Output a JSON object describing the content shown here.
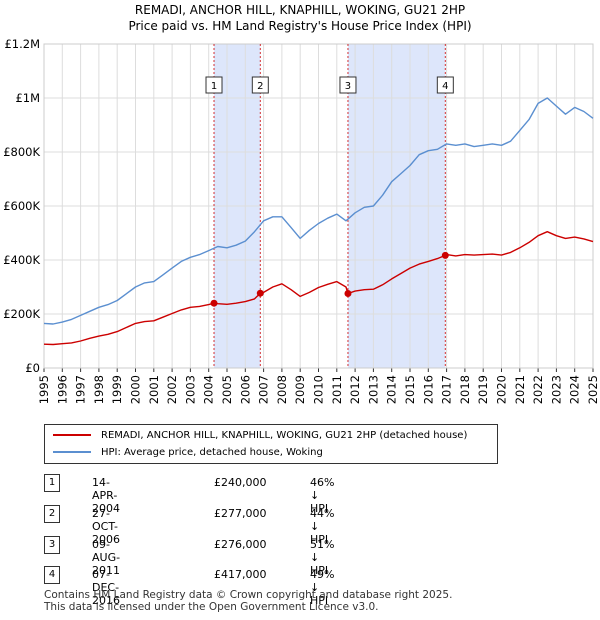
{
  "title_line1": "REMADI, ANCHOR HILL, KNAPHILL, WOKING, GU21 2HP",
  "title_line2": "Price paid vs. HM Land Registry's House Price Index (HPI)",
  "legend": {
    "red_label": "REMADI, ANCHOR HILL, KNAPHILL, WOKING, GU21 2HP (detached house)",
    "blue_label": "HPI: Average price, detached house, Woking"
  },
  "sales": [
    {
      "num": "1",
      "date": "14-APR-2004",
      "price": "£240,000",
      "hpi": "46% ↓ HPI"
    },
    {
      "num": "2",
      "date": "27-OCT-2006",
      "price": "£277,000",
      "hpi": "44% ↓ HPI"
    },
    {
      "num": "3",
      "date": "09-AUG-2011",
      "price": "£276,000",
      "hpi": "51% ↓ HPI"
    },
    {
      "num": "4",
      "date": "07-DEC-2016",
      "price": "£417,000",
      "hpi": "49% ↓ HPI"
    }
  ],
  "footer": {
    "line1": "Contains HM Land Registry data © Crown copyright and database right 2025.",
    "line2": "This data is licensed under the Open Government Licence v3.0."
  },
  "colors": {
    "red": "#cc0000",
    "blue": "#5b8fd0",
    "band": "#dde6fb",
    "grid": "#dddddd"
  },
  "chart_data": {
    "type": "line",
    "title": "Price paid vs. HM Land Registry's House Price Index (HPI)",
    "xlabel": "",
    "ylabel": "",
    "xlim": [
      1995,
      2025
    ],
    "ylim": [
      0,
      1200000
    ],
    "y_ticks": [
      {
        "value": 0,
        "label": "£0"
      },
      {
        "value": 200000,
        "label": "£200K"
      },
      {
        "value": 400000,
        "label": "£400K"
      },
      {
        "value": 600000,
        "label": "£600K"
      },
      {
        "value": 800000,
        "label": "£800K"
      },
      {
        "value": 1000000,
        "label": "£1M"
      },
      {
        "value": 1200000,
        "label": "£1.2M"
      }
    ],
    "x_ticks": [
      "1995",
      "1996",
      "1997",
      "1998",
      "1999",
      "2000",
      "2001",
      "2002",
      "2003",
      "2004",
      "2005",
      "2006",
      "2007",
      "2008",
      "2009",
      "2010",
      "2011",
      "2012",
      "2013",
      "2014",
      "2015",
      "2016",
      "2017",
      "2018",
      "2019",
      "2020",
      "2021",
      "2022",
      "2023",
      "2024",
      "2025"
    ],
    "shaded_bands": [
      [
        2004.29,
        2006.82
      ],
      [
        2011.61,
        2016.93
      ]
    ],
    "series": [
      {
        "name": "HPI: Average price, detached house, Woking",
        "color": "#5b8fd0",
        "x": [
          1995,
          1995.5,
          1996,
          1996.5,
          1997,
          1997.5,
          1998,
          1998.5,
          1999,
          1999.5,
          2000,
          2000.5,
          2001,
          2001.5,
          2002,
          2002.5,
          2003,
          2003.5,
          2004,
          2004.5,
          2005,
          2005.5,
          2006,
          2006.5,
          2007,
          2007.5,
          2008,
          2008.5,
          2009,
          2009.5,
          2010,
          2010.5,
          2011,
          2011.5,
          2012,
          2012.5,
          2013,
          2013.5,
          2014,
          2014.5,
          2015,
          2015.5,
          2016,
          2016.5,
          2017,
          2017.5,
          2018,
          2018.5,
          2019,
          2019.5,
          2020,
          2020.5,
          2021,
          2021.5,
          2022,
          2022.5,
          2023,
          2023.5,
          2024,
          2024.5,
          2025
        ],
        "values": [
          165000,
          163000,
          170000,
          180000,
          195000,
          210000,
          225000,
          235000,
          250000,
          275000,
          300000,
          315000,
          320000,
          345000,
          370000,
          395000,
          410000,
          420000,
          435000,
          450000,
          445000,
          455000,
          470000,
          505000,
          545000,
          560000,
          560000,
          520000,
          480000,
          510000,
          535000,
          555000,
          570000,
          545000,
          575000,
          595000,
          600000,
          640000,
          690000,
          720000,
          750000,
          790000,
          805000,
          810000,
          830000,
          825000,
          830000,
          820000,
          825000,
          830000,
          825000,
          840000,
          880000,
          920000,
          980000,
          1000000,
          970000,
          940000,
          965000,
          950000,
          925000
        ]
      },
      {
        "name": "REMADI, ANCHOR HILL, KNAPHILL, WOKING, GU21 2HP (detached house)",
        "color": "#cc0000",
        "x": [
          1995,
          1995.5,
          1996,
          1996.5,
          1997,
          1997.5,
          1998,
          1998.5,
          1999,
          1999.5,
          2000,
          2000.5,
          2001,
          2001.5,
          2002,
          2002.5,
          2003,
          2003.5,
          2004,
          2004.29,
          2004.5,
          2005,
          2005.5,
          2006,
          2006.5,
          2006.82,
          2007,
          2007.5,
          2008,
          2008.5,
          2009,
          2009.5,
          2010,
          2010.5,
          2011,
          2011.5,
          2011.61,
          2012,
          2012.5,
          2013,
          2013.5,
          2014,
          2014.5,
          2015,
          2015.5,
          2016,
          2016.5,
          2016.93,
          2017,
          2017.5,
          2018,
          2018.5,
          2019,
          2019.5,
          2020,
          2020.5,
          2021,
          2021.5,
          2022,
          2022.5,
          2023,
          2023.5,
          2024,
          2024.5,
          2025
        ],
        "values": [
          88000,
          87000,
          90000,
          93000,
          100000,
          110000,
          118000,
          125000,
          135000,
          150000,
          165000,
          172000,
          175000,
          188000,
          202000,
          215000,
          225000,
          228000,
          235000,
          240000,
          238000,
          236000,
          240000,
          246000,
          256000,
          277000,
          280000,
          300000,
          312000,
          290000,
          265000,
          280000,
          298000,
          310000,
          320000,
          300000,
          276000,
          285000,
          290000,
          292000,
          308000,
          330000,
          350000,
          370000,
          385000,
          395000,
          405000,
          417000,
          420000,
          415000,
          420000,
          418000,
          420000,
          422000,
          418000,
          428000,
          445000,
          465000,
          490000,
          505000,
          490000,
          480000,
          485000,
          478000,
          468000
        ]
      }
    ],
    "sale_markers": [
      {
        "label": "1",
        "x": 2004.29,
        "value": 240000
      },
      {
        "label": "2",
        "x": 2006.82,
        "value": 277000
      },
      {
        "label": "3",
        "x": 2011.61,
        "value": 276000
      },
      {
        "label": "4",
        "x": 2016.93,
        "value": 417000
      }
    ]
  }
}
